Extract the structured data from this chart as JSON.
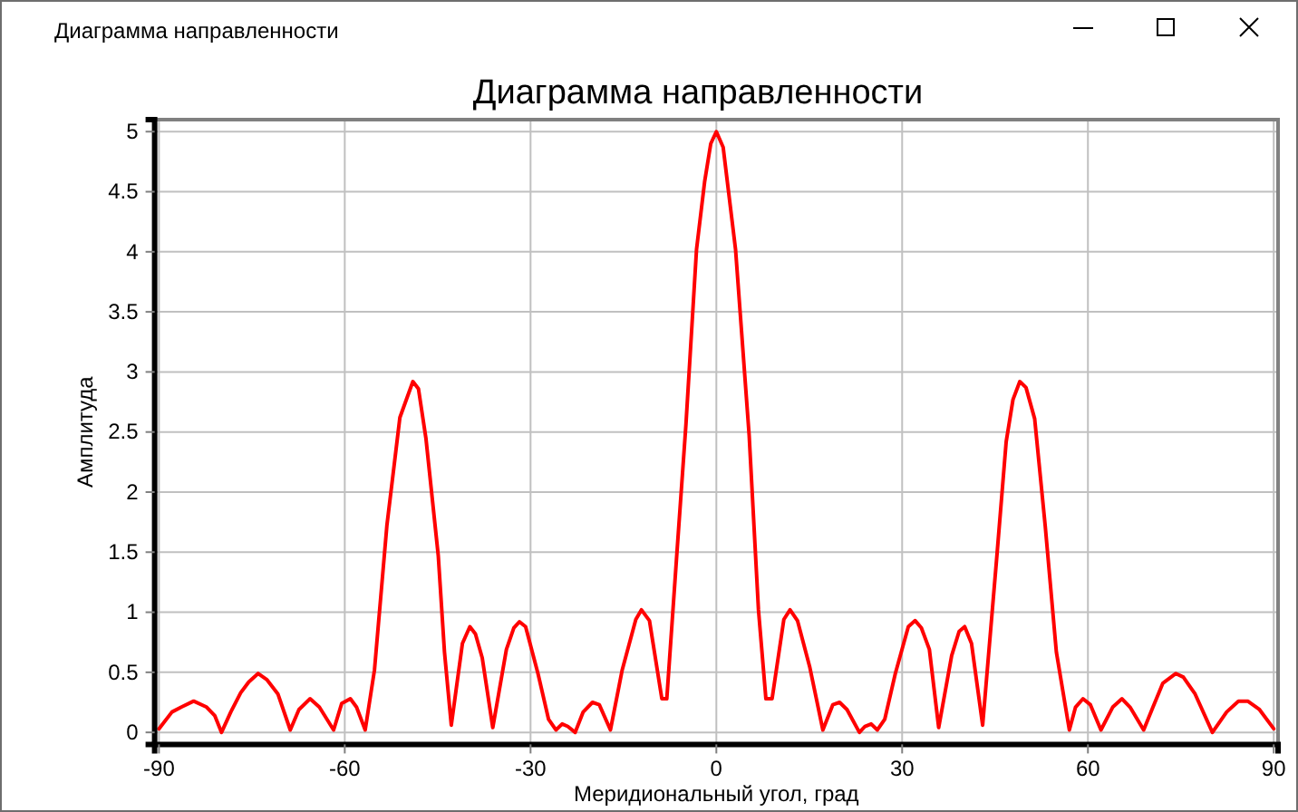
{
  "chart_data": {
    "type": "line",
    "title": "Диаграмма направленности",
    "xlabel": "Меридиональный угол, град",
    "ylabel": "Амплитуда",
    "annotations": [
      "Диаграмма направленности"
    ],
    "x": [
      -90,
      -87.9,
      -86.4,
      -84.4,
      -82.3,
      -81.0,
      -79.9,
      -78.4,
      -76.8,
      -75.5,
      -74.0,
      -72.6,
      -70.8,
      -68.8,
      -67.4,
      -65.6,
      -64.1,
      -61.8,
      -60.5,
      -59.1,
      -58.1,
      -56.7,
      -55.2,
      -53.2,
      -51.1,
      -49.0,
      -48.1,
      -46.9,
      -44.9,
      -43.9,
      -42.8,
      -41.0,
      -39.8,
      -38.9,
      -37.8,
      -36.1,
      -33.9,
      -32.7,
      -31.8,
      -30.8,
      -28.8,
      -27.1,
      -25.9,
      -24.9,
      -24.0,
      -22.8,
      -21.5,
      -20.0,
      -18.9,
      -17.1,
      -15.2,
      -13.0,
      -12.1,
      -10.8,
      -8.8,
      -8.0,
      -6.4,
      -4.9,
      -3.2,
      -1.9,
      -0.9,
      0,
      1.1,
      3.1,
      5.3,
      6.8,
      8.0,
      9.0,
      10.9,
      11.9,
      13.1,
      15.1,
      17.2,
      18.8,
      19.9,
      21.1,
      23.1,
      24.0,
      25.0,
      26.0,
      27.2,
      28.9,
      31.0,
      32.1,
      33.1,
      34.4,
      35.9,
      38.0,
      39.2,
      40.1,
      41.2,
      43.0,
      45.3,
      46.8,
      47.9,
      49.0,
      50.0,
      51.4,
      53.1,
      54.9,
      57.0,
      58.0,
      59.2,
      60.4,
      62.1,
      64.0,
      65.5,
      66.8,
      69.0,
      70.5,
      72.1,
      74.2,
      75.4,
      77.3,
      80.1,
      82.4,
      84.3,
      85.8,
      87.7,
      90
    ],
    "series": [
      {
        "color": "#ff0000",
        "values": [
          0.03,
          0.17,
          0.21,
          0.26,
          0.21,
          0.14,
          0,
          0.17,
          0.33,
          0.42,
          0.49,
          0.44,
          0.32,
          0.02,
          0.19,
          0.28,
          0.21,
          0.02,
          0.24,
          0.28,
          0.21,
          0.02,
          0.52,
          1.72,
          2.62,
          2.92,
          2.86,
          2.45,
          1.47,
          0.67,
          0.06,
          0.74,
          0.88,
          0.82,
          0.62,
          0.04,
          0.69,
          0.87,
          0.92,
          0.88,
          0.49,
          0.11,
          0.02,
          0.07,
          0.05,
          0,
          0.17,
          0.25,
          0.23,
          0.02,
          0.52,
          0.94,
          1.02,
          0.93,
          0.28,
          0.28,
          1.47,
          2.57,
          4.02,
          4.58,
          4.9,
          5.0,
          4.87,
          4.02,
          2.47,
          1.02,
          0.28,
          0.28,
          0.94,
          1.02,
          0.93,
          0.54,
          0.02,
          0.23,
          0.25,
          0.19,
          0,
          0.05,
          0.07,
          0.02,
          0.11,
          0.49,
          0.88,
          0.93,
          0.87,
          0.69,
          0.04,
          0.64,
          0.84,
          0.88,
          0.74,
          0.06,
          1.47,
          2.42,
          2.77,
          2.92,
          2.87,
          2.61,
          1.72,
          0.67,
          0.02,
          0.21,
          0.28,
          0.23,
          0.02,
          0.21,
          0.28,
          0.21,
          0.02,
          0.21,
          0.41,
          0.49,
          0.46,
          0.32,
          0,
          0.17,
          0.26,
          0.26,
          0.19,
          0.03
        ]
      }
    ],
    "xlim": [
      -90.7,
      90.7
    ],
    "ylim": [
      -0.1,
      5.1
    ],
    "xticks": [
      -90,
      -60,
      -30,
      0,
      30,
      60,
      90
    ],
    "yticks": [
      0,
      0.5,
      1,
      1.5,
      2,
      2.5,
      3,
      3.5,
      4,
      4.5,
      5
    ],
    "grid": true
  }
}
